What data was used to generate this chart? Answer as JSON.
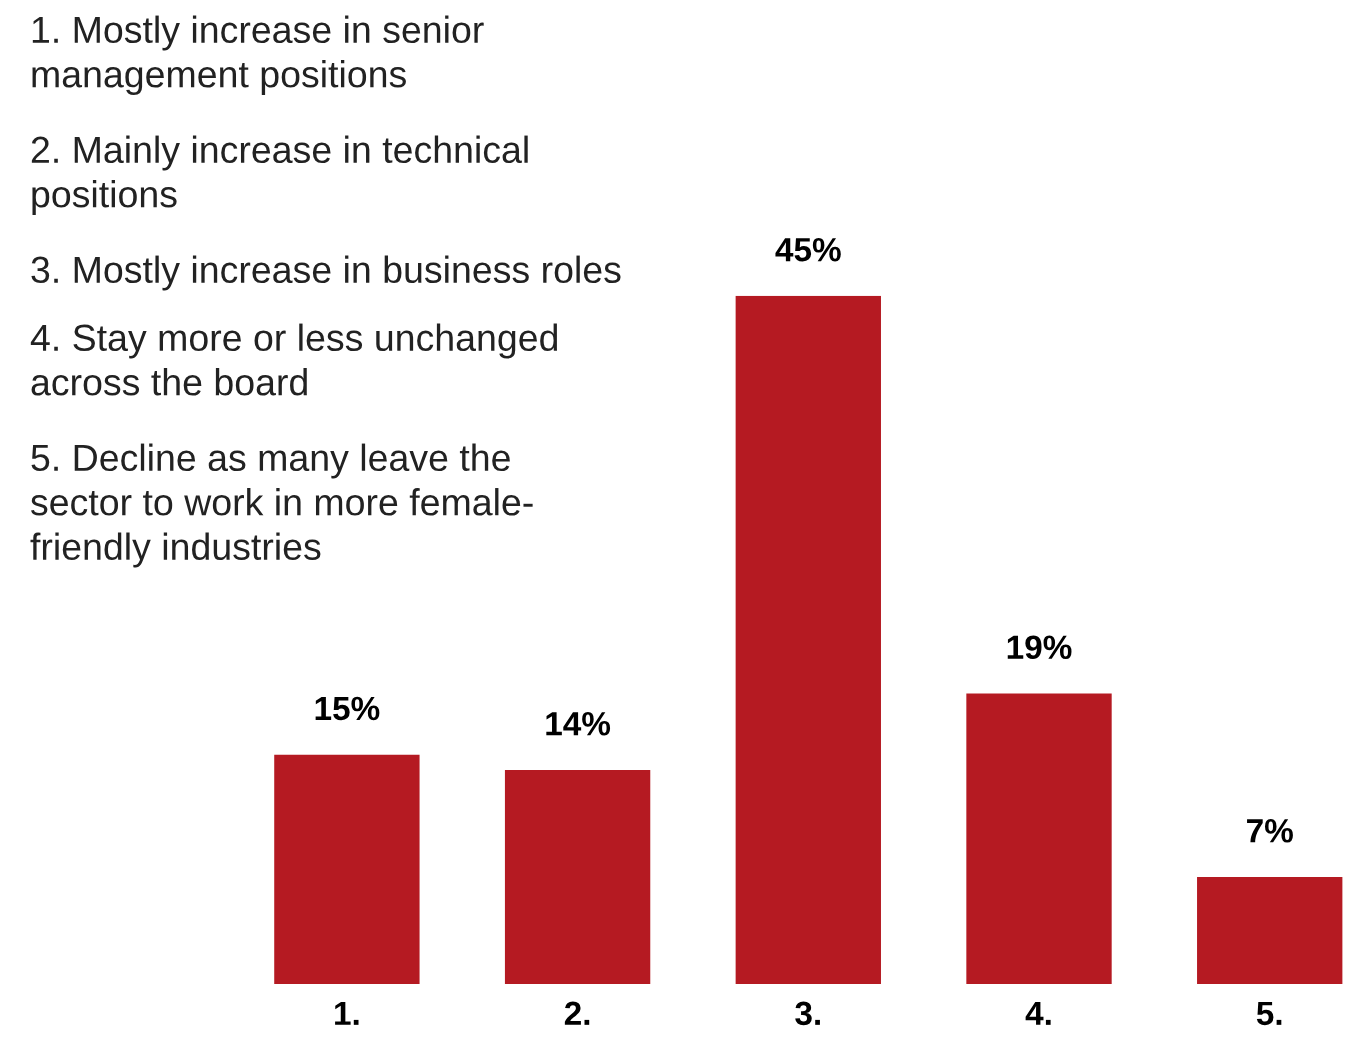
{
  "chart_data": {
    "type": "bar",
    "categories": [
      "1.",
      "2.",
      "3.",
      "4.",
      "5."
    ],
    "values": [
      15,
      14,
      45,
      19,
      7
    ],
    "value_labels": [
      "15%",
      "14%",
      "45%",
      "19%",
      "7%"
    ],
    "color": "#b51a22",
    "ylim": [
      0,
      45
    ],
    "tick_labels": "x",
    "grid": false,
    "annotations": [
      "1. Mostly increase in senior\nmanagement positions",
      "2. Mainly increase in technical\npositions",
      "3. Mostly increase in business roles",
      "4. Stay more or less unchanged\nacross the board",
      "5. Decline as many leave the\nsector to work in more female-\nfriendly industries"
    ]
  }
}
